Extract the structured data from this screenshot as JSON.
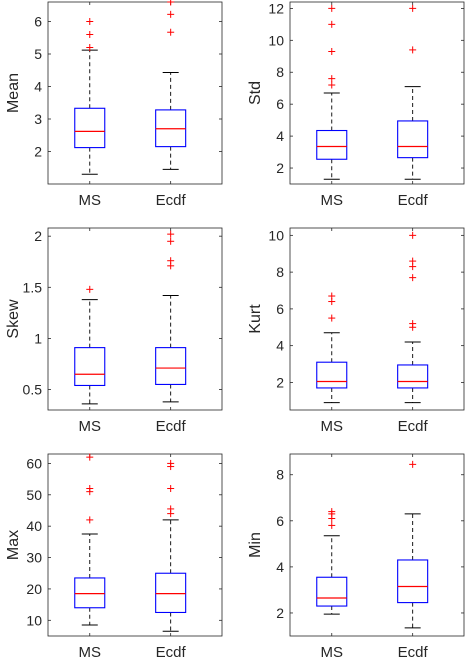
{
  "chart_data": [
    {
      "type": "box",
      "ylabel": "Mean",
      "categories": [
        "MS",
        "Ecdf"
      ],
      "ylim": [
        1,
        6.6
      ],
      "yticks": [
        2,
        3,
        4,
        5,
        6
      ],
      "boxes": [
        {
          "whisker_low": 1.3,
          "q1": 2.12,
          "median": 2.62,
          "q3": 3.33,
          "whisker_high": 5.12,
          "outliers": [
            5.2,
            5.6,
            6.0
          ]
        },
        {
          "whisker_low": 1.45,
          "q1": 2.15,
          "median": 2.7,
          "q3": 3.28,
          "whisker_high": 4.43,
          "outliers": [
            5.67,
            6.22,
            6.6
          ]
        }
      ]
    },
    {
      "type": "box",
      "ylabel": "Std",
      "categories": [
        "MS",
        "Ecdf"
      ],
      "ylim": [
        1,
        12.4
      ],
      "yticks": [
        2,
        4,
        6,
        8,
        10,
        12
      ],
      "boxes": [
        {
          "whisker_low": 1.3,
          "q1": 2.55,
          "median": 3.35,
          "q3": 4.35,
          "whisker_high": 6.7,
          "outliers": [
            7.2,
            7.6,
            9.3,
            11.0,
            12.0
          ]
        },
        {
          "whisker_low": 1.3,
          "q1": 2.65,
          "median": 3.35,
          "q3": 4.95,
          "whisker_high": 7.1,
          "outliers": [
            9.4,
            12.0
          ]
        }
      ]
    },
    {
      "type": "box",
      "ylabel": "Skew",
      "categories": [
        "MS",
        "Ecdf"
      ],
      "ylim": [
        0.3,
        2.08
      ],
      "yticks": [
        0.5,
        1,
        1.5,
        2
      ],
      "boxes": [
        {
          "whisker_low": 0.36,
          "q1": 0.54,
          "median": 0.65,
          "q3": 0.91,
          "whisker_high": 1.38,
          "outliers": [
            1.48
          ]
        },
        {
          "whisker_low": 0.38,
          "q1": 0.55,
          "median": 0.71,
          "q3": 0.91,
          "whisker_high": 1.42,
          "outliers": [
            1.71,
            1.76,
            1.95,
            2.02
          ]
        }
      ]
    },
    {
      "type": "box",
      "ylabel": "Kurt",
      "categories": [
        "MS",
        "Ecdf"
      ],
      "ylim": [
        0.5,
        10.4
      ],
      "yticks": [
        2,
        4,
        6,
        8,
        10
      ],
      "boxes": [
        {
          "whisker_low": 0.9,
          "q1": 1.7,
          "median": 2.05,
          "q3": 3.1,
          "whisker_high": 4.7,
          "outliers": [
            5.5,
            6.4,
            6.7
          ]
        },
        {
          "whisker_low": 0.9,
          "q1": 1.7,
          "median": 2.05,
          "q3": 2.95,
          "whisker_high": 4.2,
          "outliers": [
            5.0,
            5.2,
            7.7,
            8.3,
            8.6,
            10.0
          ]
        }
      ]
    },
    {
      "type": "box",
      "ylabel": "Max",
      "categories": [
        "MS",
        "Ecdf"
      ],
      "ylim": [
        5,
        63
      ],
      "yticks": [
        10,
        20,
        30,
        40,
        50,
        60
      ],
      "boxes": [
        {
          "whisker_low": 8.5,
          "q1": 14.0,
          "median": 18.5,
          "q3": 23.5,
          "whisker_high": 37.5,
          "outliers": [
            42.0,
            51.0,
            52.0,
            62.0
          ]
        },
        {
          "whisker_low": 6.5,
          "q1": 12.5,
          "median": 18.5,
          "q3": 25.0,
          "whisker_high": 42.0,
          "outliers": [
            44.0,
            45.5,
            52.0,
            59.0,
            60.0
          ]
        }
      ]
    },
    {
      "type": "box",
      "ylabel": "Min",
      "categories": [
        "MS",
        "Ecdf"
      ],
      "ylim": [
        1,
        8.9
      ],
      "yticks": [
        2,
        4,
        6,
        8
      ],
      "boxes": [
        {
          "whisker_low": 1.95,
          "q1": 2.3,
          "median": 2.65,
          "q3": 3.55,
          "whisker_high": 5.35,
          "outliers": [
            5.8,
            6.1,
            6.3,
            6.4
          ]
        },
        {
          "whisker_low": 1.35,
          "q1": 2.45,
          "median": 3.15,
          "q3": 4.3,
          "whisker_high": 6.3,
          "outliers": [
            8.45
          ]
        }
      ]
    }
  ],
  "colors": {
    "box": "#0000ff",
    "median": "#ff0000",
    "whisker": "#000000",
    "outlier": "#ff0000",
    "axis": "#262626"
  }
}
